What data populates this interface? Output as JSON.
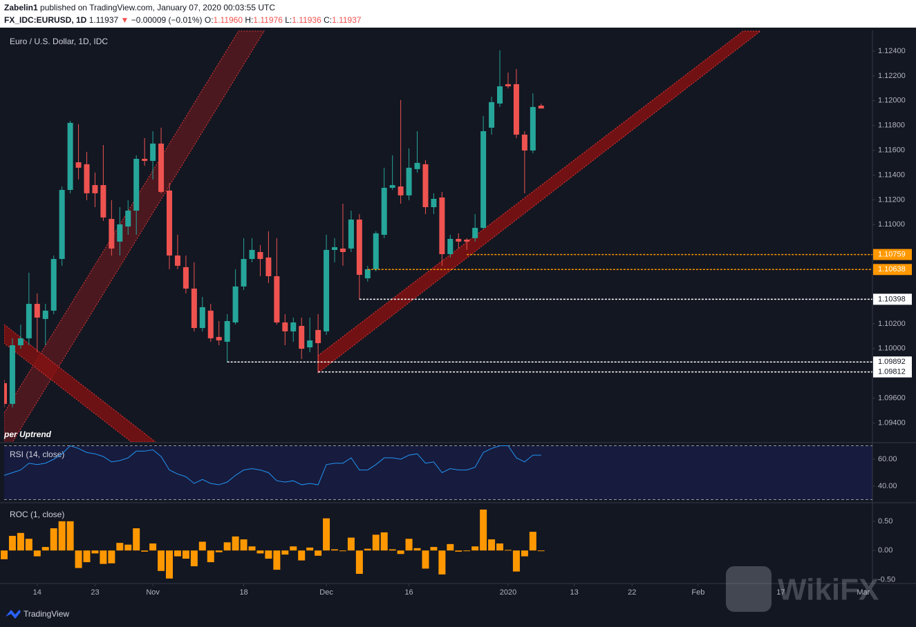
{
  "header": {
    "author": "Zabelin1",
    "published": "published on TradingView.com, January 07, 2020 00:03:55 UTC",
    "symbol": "FX_IDC:EURUSD, 1D",
    "last": "1.11937",
    "arrow": "▼",
    "change": "−0.00009 (−0.01%)",
    "o_label": "O:",
    "o": "1.11960",
    "h_label": "H:",
    "h": "1.11976",
    "l_label": "L:",
    "l": "1.11936",
    "c_label": "C:",
    "c": "1.11937"
  },
  "chart_data": [
    {
      "type": "candlestick",
      "title": "Euro / U.S. Dollar, 1D, IDC",
      "annotation": "per Uptrend",
      "up_color": "#26a69a",
      "down_color": "#ef5350",
      "open": [
        1.09721,
        1.09554,
        1.10027,
        1.10083,
        1.10361,
        1.10239,
        1.10306,
        1.10723,
        1.1128,
        1.11503,
        1.11487,
        1.11319,
        1.11319,
        1.11046,
        1.10863,
        1.10985,
        1.11113,
        1.11531,
        1.11514,
        1.11654,
        1.11275,
        1.10751,
        1.10657,
        1.10484,
        1.10166,
        1.10306,
        1.10094,
        1.10055,
        1.10211,
        1.10501,
        1.10723,
        1.10779,
        1.10735,
        1.10584,
        1.10211,
        1.10139,
        1.10183,
        1.1001,
        1.1015,
        1.10139,
        1.10796,
        1.10807,
        1.10807,
        1.11041,
        1.10567,
        1.1064,
        1.10918,
        1.11297,
        1.11308,
        1.11236,
        1.11448,
        1.11487,
        1.11141,
        1.11219,
        1.10762,
        1.10885,
        1.10879,
        1.10891,
        1.10974,
        1.11782,
        1.11977,
        1.12133,
        1.12133,
        1.11726,
        1.11598,
        1.1196
      ],
      "high": [
        1.09749,
        1.10083,
        1.10194,
        1.10612,
        1.10445,
        1.10361,
        1.10751,
        1.11308,
        1.11837,
        1.1181,
        1.11587,
        1.1142,
        1.11642,
        1.11197,
        1.11141,
        1.11197,
        1.11559,
        1.11698,
        1.11754,
        1.11782,
        1.11336,
        1.10918,
        1.10751,
        1.10696,
        1.10417,
        1.10361,
        1.10222,
        1.10278,
        1.1064,
        1.10891,
        1.10891,
        1.10835,
        1.10946,
        1.10891,
        1.10278,
        1.1025,
        1.1025,
        1.1025,
        1.10278,
        1.10918,
        1.10891,
        1.11169,
        1.11113,
        1.11085,
        1.10668,
        1.10946,
        1.11459,
        1.11559,
        1.12005,
        1.11615,
        1.11754,
        1.1152,
        1.11253,
        1.11264,
        1.10918,
        1.1093,
        1.10891,
        1.11085,
        1.11876,
        1.12032,
        1.12406,
        1.12227,
        1.12255,
        1.11754,
        1.1206,
        1.11976
      ],
      "low": [
        1.09526,
        1.09526,
        1.09999,
        1.10027,
        1.09971,
        1.10027,
        1.10278,
        1.10668,
        1.11253,
        1.11364,
        1.11197,
        1.11141,
        1.1103,
        1.10751,
        1.10751,
        1.10918,
        1.10918,
        1.11475,
        1.11364,
        1.11253,
        1.1064,
        1.1064,
        1.10445,
        1.10139,
        1.10139,
        1.10055,
        1.10027,
        1.09892,
        1.10194,
        1.10473,
        1.10696,
        1.10584,
        1.10528,
        1.10194,
        1.10027,
        1.10055,
        1.09916,
        1.09971,
        1.09812,
        1.10111,
        1.10696,
        1.10668,
        1.10779,
        1.10398,
        1.1054,
        1.10623,
        1.10891,
        1.1128,
        1.11169,
        1.11197,
        1.1142,
        1.11085,
        1.11085,
        1.10668,
        1.10735,
        1.10807,
        1.10796,
        1.10863,
        1.10963,
        1.11726,
        1.11949,
        1.12099,
        1.11698,
        1.11253,
        1.11576,
        1.11936
      ],
      "close": [
        1.09554,
        1.10027,
        1.10083,
        1.10361,
        1.1025,
        1.10306,
        1.10723,
        1.1128,
        1.11821,
        1.11459,
        1.11253,
        1.11253,
        1.11058,
        1.10807,
        1.11002,
        1.11113,
        1.11531,
        1.11514,
        1.11654,
        1.11264,
        1.10751,
        1.10668,
        1.10484,
        1.10166,
        1.10334,
        1.10083,
        1.10066,
        1.10222,
        1.10501,
        1.10723,
        1.10796,
        1.10723,
        1.10584,
        1.10211,
        1.10139,
        1.10211,
        1.09999,
        1.10066,
        1.10044,
        1.10796,
        1.10818,
        1.10779,
        1.11041,
        1.10595,
        1.1064,
        1.1093,
        1.11297,
        1.11319,
        1.11236,
        1.11459,
        1.11498,
        1.11141,
        1.11208,
        1.10762,
        1.10885,
        1.10863,
        1.10863,
        1.10974,
        1.11754,
        1.11988,
        1.12116,
        1.12116,
        1.11726,
        1.11598,
        1.11949,
        1.11937
      ],
      "levels": [
        {
          "value": 1.10759,
          "color": "#ff9800",
          "from": 56
        },
        {
          "value": 1.10638,
          "color": "#ff9800",
          "from": 44
        },
        {
          "value": 1.10398,
          "color": "#ffffff",
          "from": 43
        },
        {
          "value": 1.09892,
          "color": "#ffffff",
          "from": 27
        },
        {
          "value": 1.09812,
          "color": "#ffffff",
          "from": 38
        }
      ],
      "xlim": [
        0,
        105.1
      ],
      "xticks": [
        {
          "value": 4,
          "label": "14"
        },
        {
          "value": 11,
          "label": "23"
        },
        {
          "value": 18,
          "label": "Nov"
        },
        {
          "value": 29,
          "label": "18"
        },
        {
          "value": 39,
          "label": "Dec"
        },
        {
          "value": 49,
          "label": "16"
        },
        {
          "value": 61,
          "label": "2020"
        },
        {
          "value": 69,
          "label": "13"
        },
        {
          "value": 76,
          "label": "22"
        },
        {
          "value": 84,
          "label": "Feb"
        },
        {
          "value": 94,
          "label": "17"
        },
        {
          "value": 104,
          "label": "Mar"
        }
      ],
      "ylim": [
        1.09247,
        1.12567
      ],
      "yticks": [
        {
          "value": 1.124,
          "label": "1.12400"
        },
        {
          "value": 1.122,
          "label": "1.12200"
        },
        {
          "value": 1.12,
          "label": "1.12000"
        },
        {
          "value": 1.118,
          "label": "1.11800"
        },
        {
          "value": 1.116,
          "label": "1.11600"
        },
        {
          "value": 1.114,
          "label": "1.11400"
        },
        {
          "value": 1.112,
          "label": "1.11200"
        },
        {
          "value": 1.11,
          "label": "1.11000"
        },
        {
          "value": 1.102,
          "label": "1.10200"
        },
        {
          "value": 1.1,
          "label": "1.10000"
        },
        {
          "value": 1.096,
          "label": "1.09600"
        },
        {
          "value": 1.094,
          "label": "1.09400"
        }
      ]
    },
    {
      "type": "line",
      "title": "RSI (14, close)",
      "color": "#2196f3",
      "values": [
        48,
        50,
        52,
        57,
        56,
        57,
        60,
        64,
        70,
        68,
        65,
        64,
        62,
        58,
        59,
        61,
        66,
        66,
        67,
        62,
        52,
        49,
        47,
        42,
        45,
        42,
        41,
        43,
        48,
        52,
        53,
        52,
        50,
        44,
        43,
        44,
        41,
        42,
        41,
        56,
        57,
        57,
        61,
        52,
        52,
        56,
        61,
        61,
        60,
        63,
        64,
        57,
        58,
        50,
        53,
        52,
        52,
        54,
        65,
        68,
        70,
        70,
        61,
        58,
        63,
        63
      ],
      "ylim": [
        28.2,
        71.8
      ],
      "bands": [
        30,
        70
      ],
      "yticks": [
        {
          "value": 60,
          "label": "60.00"
        },
        {
          "value": 40,
          "label": "40.00"
        }
      ]
    },
    {
      "type": "bar",
      "title": "ROC (1, close)",
      "color": "#ff9800",
      "values": [
        -0.15,
        0.25,
        0.3,
        0.2,
        -0.1,
        0.06,
        0.38,
        0.5,
        0.5,
        -0.3,
        -0.2,
        -0.05,
        -0.23,
        -0.22,
        0.13,
        0.1,
        0.38,
        -0.02,
        0.12,
        -0.35,
        -0.48,
        -0.1,
        -0.14,
        -0.27,
        0.15,
        -0.2,
        -0.03,
        0.14,
        0.24,
        0.19,
        0.07,
        -0.05,
        -0.14,
        -0.33,
        -0.07,
        0.07,
        -0.17,
        0.05,
        -0.09,
        0.55,
        0.02,
        -0.01,
        0.22,
        -0.4,
        0.03,
        0.27,
        0.31,
        0.02,
        -0.06,
        0.2,
        0.04,
        -0.31,
        0.06,
        -0.41,
        0.11,
        -0.02,
        -0.01,
        0.07,
        0.7,
        0.19,
        0.12,
        0.01,
        -0.36,
        -0.1,
        0.32,
        -0.01
      ],
      "ylim": [
        -0.565,
        0.794
      ],
      "yticks": [
        {
          "value": 0.5,
          "label": "0.50"
        },
        {
          "value": 0,
          "label": "0.00"
        },
        {
          "value": -0.5,
          "label": "-0.50"
        }
      ]
    }
  ],
  "footer": {
    "brand": "TradingView",
    "watermark": "WikiFX"
  }
}
